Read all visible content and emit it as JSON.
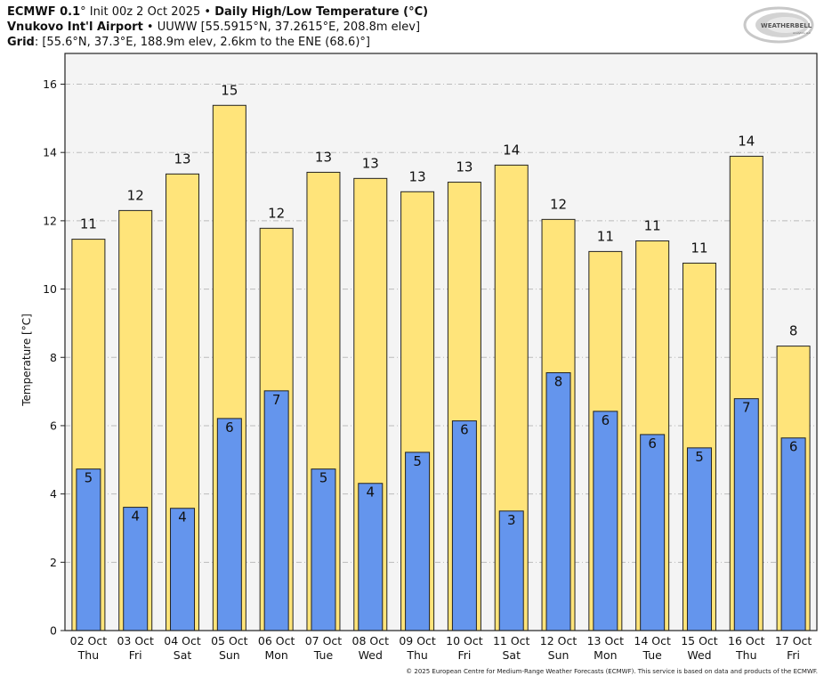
{
  "header": {
    "line1_model": "ECMWF 0.1",
    "line1_deg": "°",
    "line1_init": " Init 00z 2 Oct 2025 • ",
    "line1_title": "Daily High/Low Temperature (°C)",
    "line2_station": "Vnukovo Int'l Airport",
    "line2_rest": " • UUWW [55.5915°N, 37.2615°E, 208.8m elev]",
    "line3_label": "Grid",
    "line3_rest": ": [55.6°N, 37.3°E, 188.9m elev, 2.6km to the ENE (68.6)°]"
  },
  "logo": {
    "text_main": "WEATHERBELL",
    "text_sub": "Analytics LLC"
  },
  "footer": "© 2025 European Centre for Medium-Range Weather Forecasts (ECMWF). This service is based on data and products of the ECMWF.",
  "colors": {
    "high": "#FFE47A",
    "low": "#6495ED",
    "plot_bg": "#F4F4F4",
    "grid": "#BBBBBB",
    "edge": "#222222"
  },
  "chart_data": {
    "type": "bar",
    "title": "Daily High/Low Temperature (°C)",
    "xlabel": "",
    "ylabel": "Temperature [°C]",
    "ylim": [
      0,
      16.9
    ],
    "yticks": [
      0,
      2,
      4,
      6,
      8,
      10,
      12,
      14,
      16
    ],
    "grid": true,
    "categories": [
      "02 Oct",
      "03 Oct",
      "04 Oct",
      "05 Oct",
      "06 Oct",
      "07 Oct",
      "08 Oct",
      "09 Oct",
      "10 Oct",
      "11 Oct",
      "12 Oct",
      "13 Oct",
      "14 Oct",
      "15 Oct",
      "16 Oct",
      "17 Oct"
    ],
    "weekdays": [
      "Thu",
      "Fri",
      "Sat",
      "Sun",
      "Mon",
      "Tue",
      "Wed",
      "Thu",
      "Fri",
      "Sat",
      "Sun",
      "Mon",
      "Tue",
      "Wed",
      "Thu",
      "Fri"
    ],
    "series": [
      {
        "name": "High",
        "values": [
          11.46,
          12.3,
          13.37,
          15.38,
          11.78,
          13.42,
          13.24,
          12.85,
          13.13,
          13.63,
          12.04,
          11.1,
          11.41,
          10.76,
          13.89,
          8.33
        ],
        "labels": [
          "11",
          "12",
          "13",
          "15",
          "12",
          "13",
          "13",
          "13",
          "13",
          "14",
          "12",
          "11",
          "11",
          "11",
          "14",
          "8"
        ]
      },
      {
        "name": "Low",
        "values": [
          4.73,
          3.61,
          3.58,
          6.21,
          7.02,
          4.73,
          4.31,
          5.22,
          6.14,
          3.5,
          7.55,
          6.42,
          5.74,
          5.35,
          6.79,
          5.64
        ],
        "labels": [
          "5",
          "4",
          "4",
          "6",
          "7",
          "5",
          "4",
          "5",
          "6",
          "3",
          "8",
          "6",
          "6",
          "5",
          "7",
          "6"
        ]
      }
    ]
  }
}
